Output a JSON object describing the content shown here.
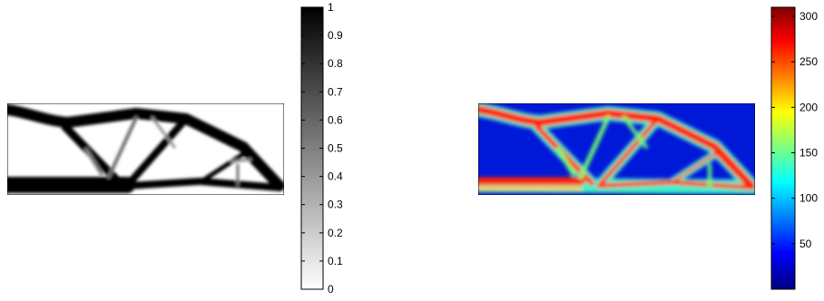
{
  "panels": [
    {
      "name": "density-panel",
      "colormap": "gray",
      "colorbar": {
        "min": 0,
        "max": 1,
        "tick_labels": [
          "1",
          "0.9",
          "0.8",
          "0.7",
          "0.6",
          "0.5",
          "0.4",
          "0.3",
          "0.2",
          "0.1",
          "0"
        ],
        "tick_values": [
          1,
          0.9,
          0.8,
          0.7,
          0.6,
          0.5,
          0.4,
          0.3,
          0.2,
          0.1,
          0
        ]
      }
    },
    {
      "name": "stress-panel",
      "colormap": "jet",
      "colorbar": {
        "min": 0,
        "max": 310,
        "tick_labels": [
          "300",
          "250",
          "200",
          "150",
          "100",
          "50"
        ],
        "tick_values": [
          300,
          250,
          200,
          150,
          100,
          50
        ]
      }
    }
  ]
}
